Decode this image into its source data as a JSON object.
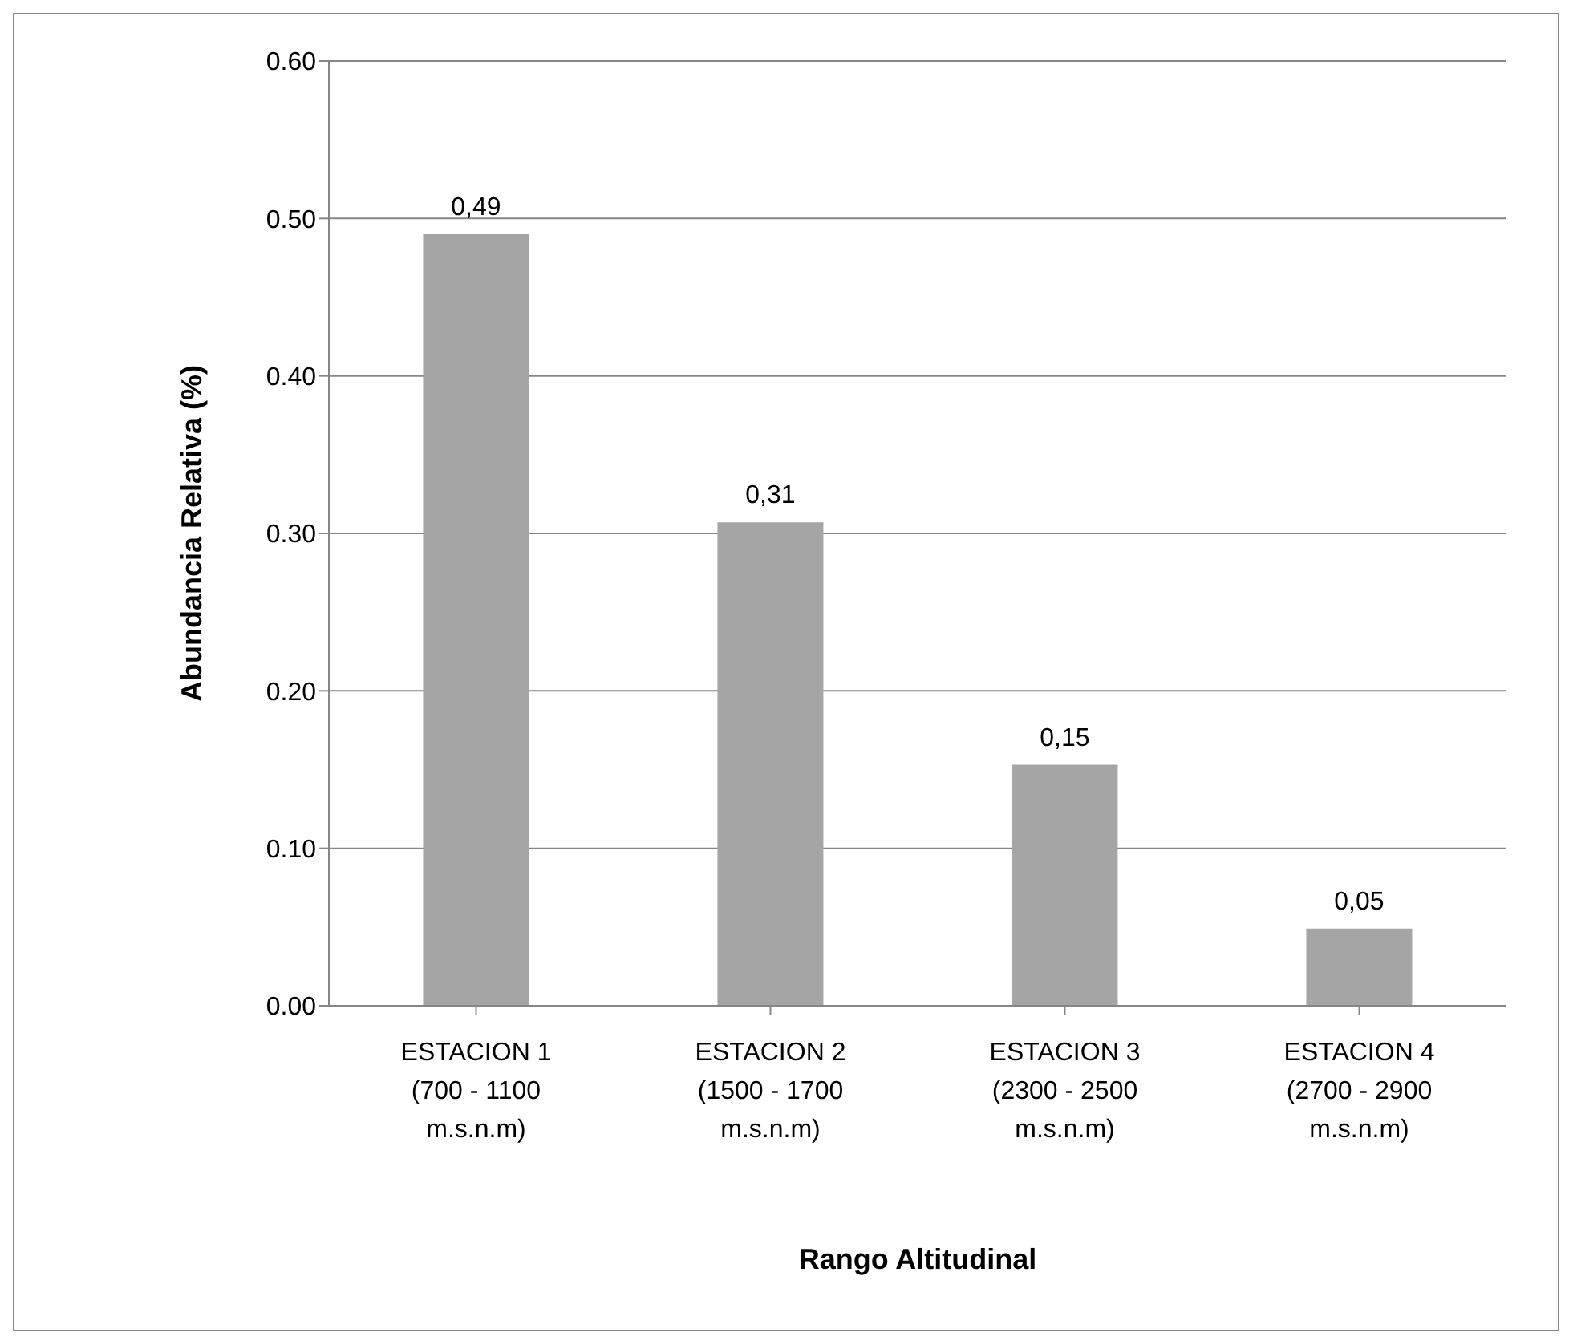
{
  "chart_data": {
    "type": "bar",
    "xlabel": "Rango Altitudinal",
    "ylabel": "Abundancia Relativa (%)",
    "categories": [
      "ESTACION 1 (700 - 1100 m.s.n.m)",
      "ESTACION 2 (1500 - 1700 m.s.n.m)",
      "ESTACION 3 (2300 - 2500 m.s.n.m)",
      "ESTACION 4 (2700 - 2900 m.s.n.m)"
    ],
    "values": [
      0.49,
      0.307,
      0.153,
      0.049
    ],
    "value_labels": [
      "0,49",
      "0,31",
      "0,15",
      "0,05"
    ],
    "color": "#a5a5a5",
    "ylim": [
      0,
      0.6
    ],
    "yticks": [
      {
        "value": 0,
        "label": "0.00"
      },
      {
        "value": 0.1,
        "label": "0.10"
      },
      {
        "value": 0.2,
        "label": "0.20"
      },
      {
        "value": 0.3,
        "label": "0.30"
      },
      {
        "value": 0.4,
        "label": "0.40"
      },
      {
        "value": 0.5,
        "label": "0.50"
      },
      {
        "value": 0.6,
        "label": "0.60"
      }
    ],
    "grid": "y"
  }
}
